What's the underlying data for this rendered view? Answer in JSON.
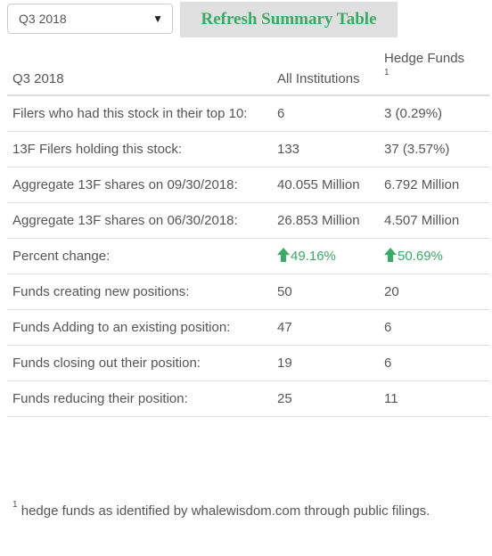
{
  "toolbar": {
    "quarter_select_value": "Q3 2018",
    "refresh_label": "Refresh Summary Table"
  },
  "table": {
    "header": {
      "col1": "Q3 2018",
      "col2": "All Institutions",
      "col3": "Hedge Funds",
      "col3_sup": "1"
    },
    "rows": [
      {
        "label": "Filers who had this stock in their top 10:",
        "all": "6",
        "hedge": "3 (0.29%)"
      },
      {
        "label": "13F Filers holding this stock:",
        "all": "133",
        "hedge": "37 (3.57%)"
      },
      {
        "label": "Aggregate 13F shares on 09/30/2018:",
        "all": "40.055 Million",
        "hedge": "6.792 Million"
      },
      {
        "label": "Aggregate 13F shares on 06/30/2018:",
        "all": "26.853 Million",
        "hedge": "4.507 Million"
      },
      {
        "label": "Percent change:",
        "all": "49.16%",
        "hedge": "50.69%"
      },
      {
        "label": "Funds creating new positions:",
        "all": "50",
        "hedge": "20"
      },
      {
        "label": "Funds Adding to an existing position:",
        "all": "47",
        "hedge": "6"
      },
      {
        "label": "Funds closing out their position:",
        "all": "19",
        "hedge": "6"
      },
      {
        "label": "Funds reducing their position:",
        "all": "25",
        "hedge": "11"
      }
    ]
  },
  "footnote": {
    "sup": "1",
    "text": " hedge funds as identified by whalewisdom.com through public filings."
  },
  "colors": {
    "accent_green": "#3aaa65",
    "button_bg": "#e0e0e0",
    "text": "#555555",
    "border": "#dddddd"
  },
  "icons": {
    "percent_change_arrow": "up-arrow-icon",
    "select_caret": "caret-down-icon"
  }
}
